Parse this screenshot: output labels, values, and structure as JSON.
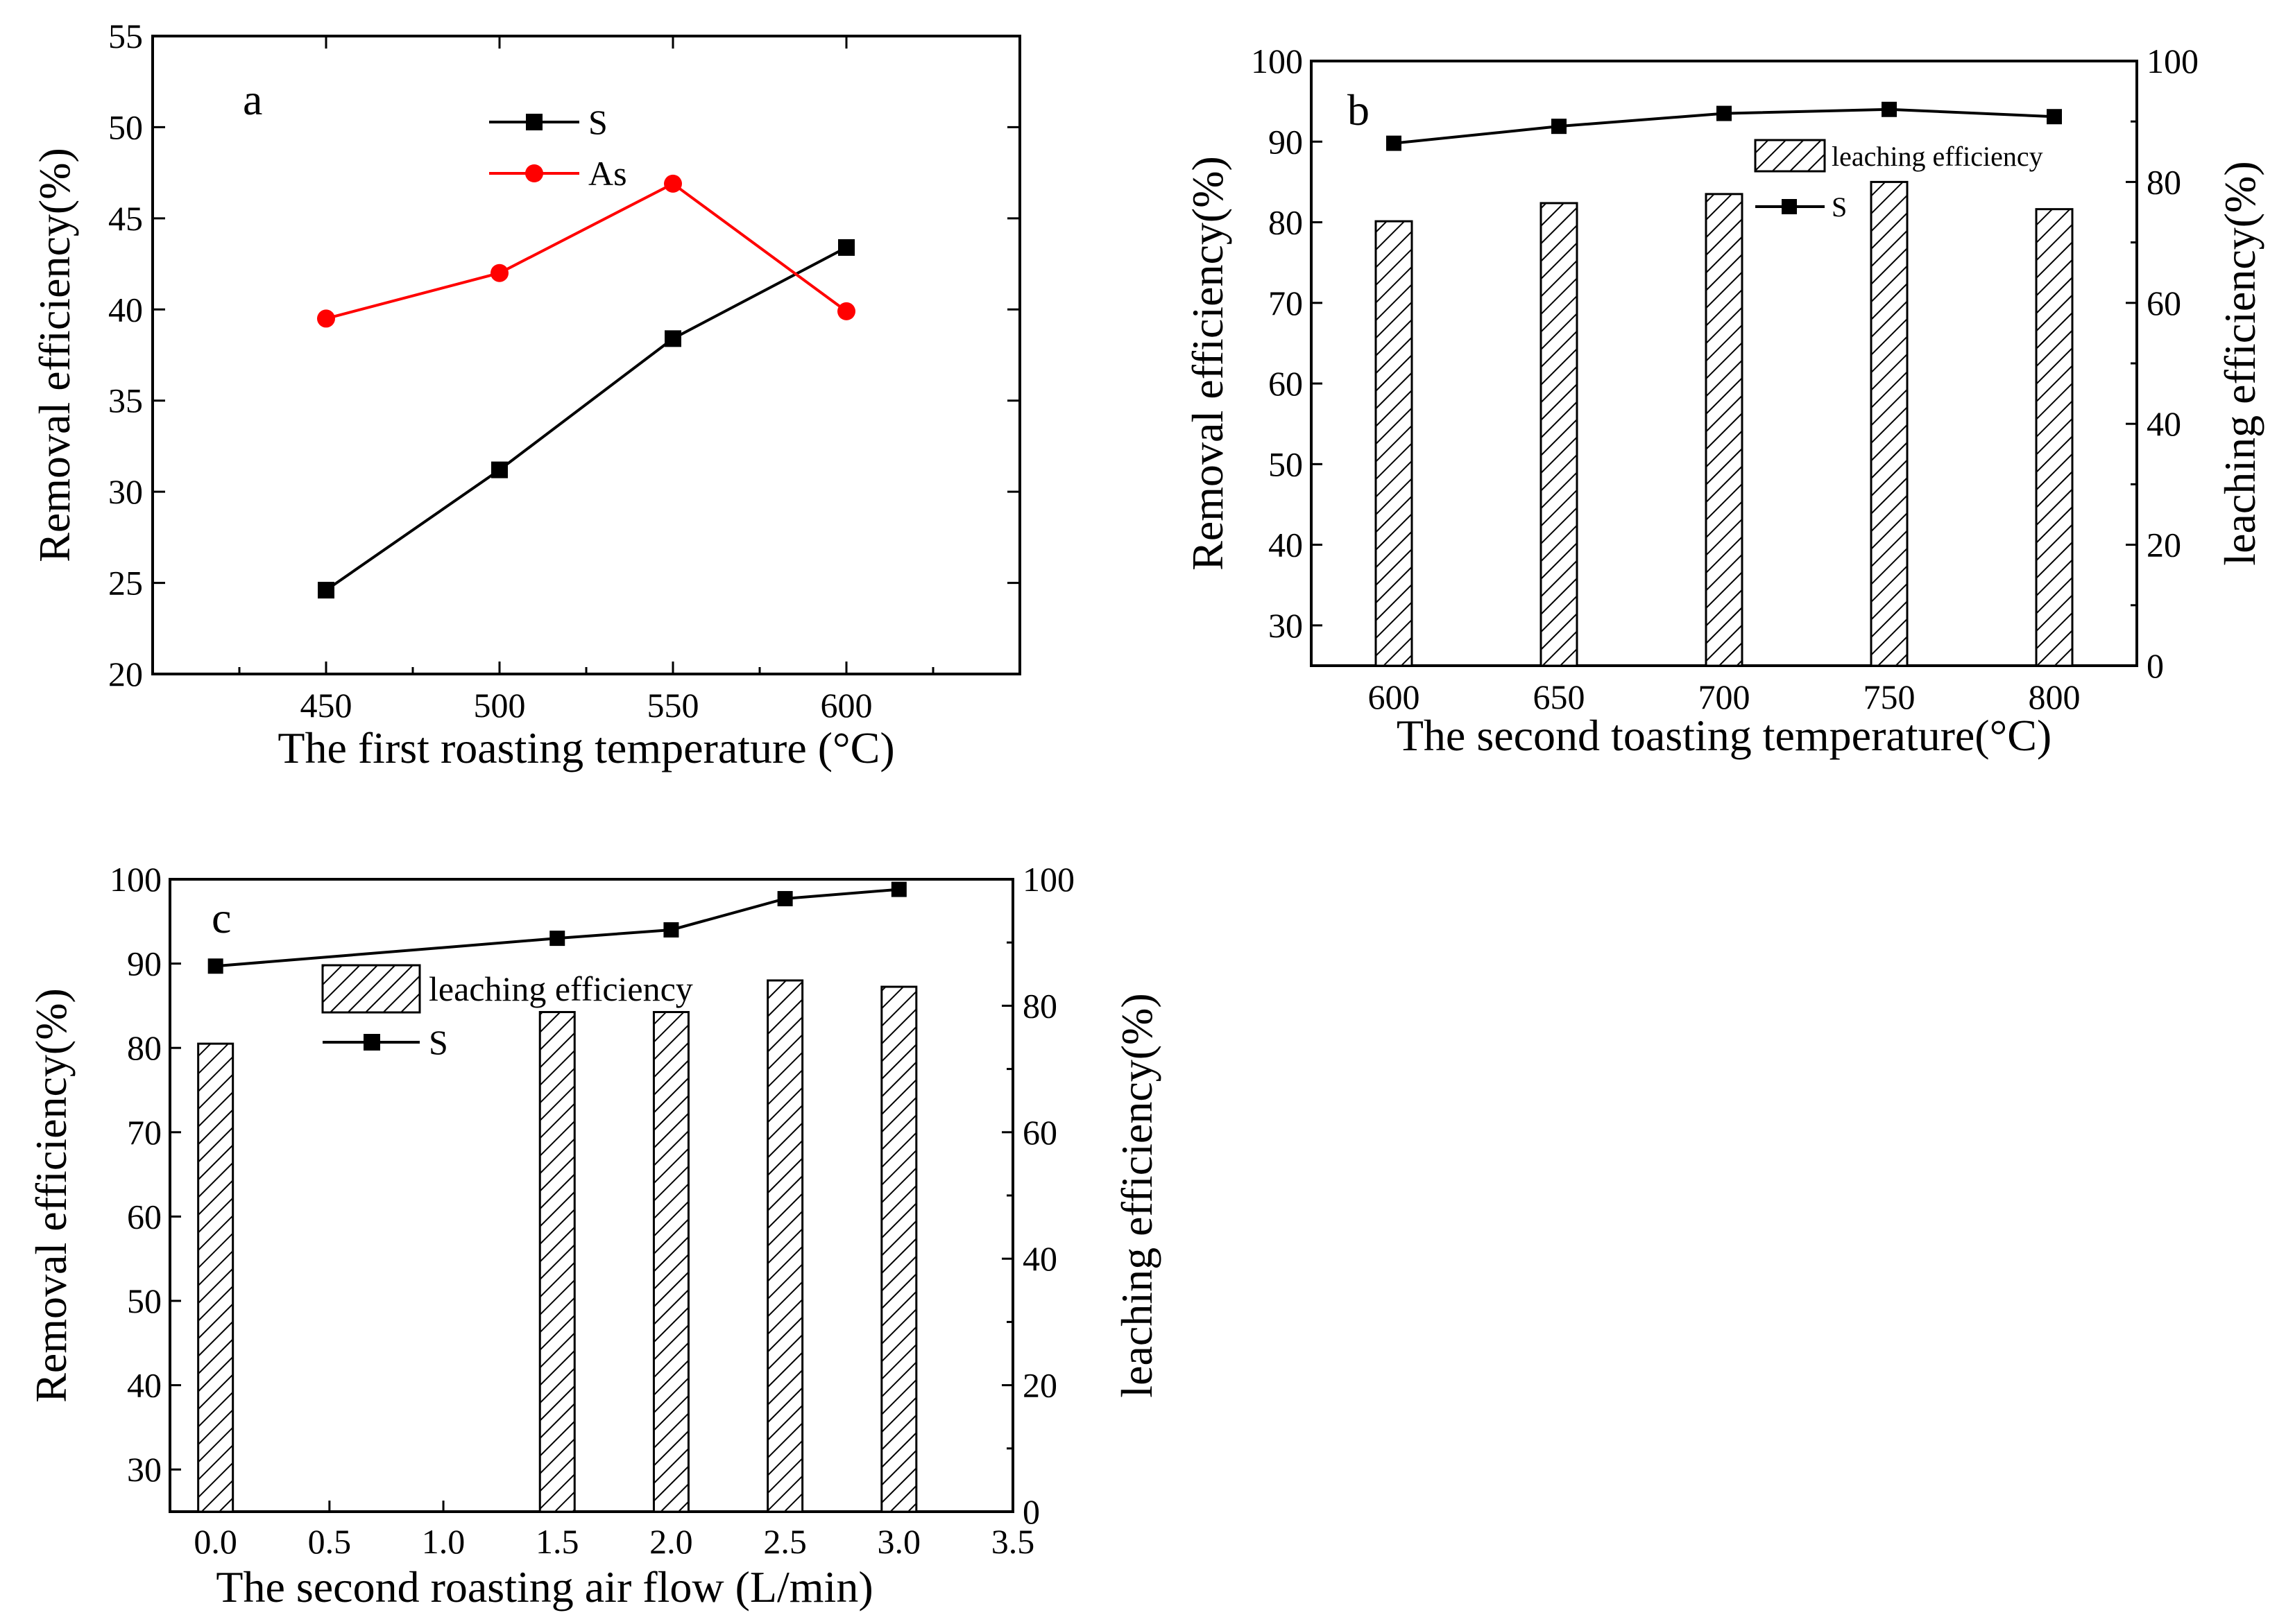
{
  "chart_data": [
    {
      "type": "line",
      "panel": "a",
      "xlabel": "The first roasting temperature (°C)",
      "ylabel": "Removal efficiency(%)",
      "xlim": [
        400,
        650
      ],
      "ylim": [
        20,
        55
      ],
      "xticks": [
        450,
        500,
        550,
        600
      ],
      "yticks": [
        20,
        25,
        30,
        35,
        40,
        45,
        50,
        55
      ],
      "x": [
        450,
        500,
        550,
        600
      ],
      "series": [
        {
          "name": "S",
          "values": [
            24.6,
            31.2,
            38.4,
            43.4
          ],
          "color": "#000000",
          "marker": "square"
        },
        {
          "name": "As",
          "values": [
            39.5,
            42.0,
            46.9,
            39.9
          ],
          "color": "#ff0000",
          "marker": "circle"
        }
      ],
      "legend_position": "top-center"
    },
    {
      "type": "bar+line",
      "panel": "b",
      "xlabel": "The second toasting temperature(°C)",
      "ylabel": "Removal efficiency(%)",
      "y2label": "leaching efficiency(%)",
      "categories": [
        600,
        650,
        700,
        750,
        800
      ],
      "xticks": [
        600,
        650,
        700,
        750,
        800
      ],
      "ylim": [
        25,
        100
      ],
      "yticks": [
        30,
        40,
        50,
        60,
        70,
        80,
        90,
        100
      ],
      "y2lim": [
        0,
        100
      ],
      "y2ticks": [
        0,
        20,
        40,
        60,
        80,
        100
      ],
      "bar_series": {
        "name": "leaching efficiency",
        "values": [
          73.5,
          76.5,
          78,
          80,
          75.5
        ],
        "axis": "right",
        "hatch": "diagonal"
      },
      "line_series": {
        "name": "S",
        "values": [
          89.8,
          91.9,
          93.5,
          94.0,
          93.1
        ],
        "axis": "left",
        "marker": "square",
        "color": "#000000"
      },
      "legend_position": "top-right"
    },
    {
      "type": "bar+line",
      "panel": "c",
      "xlabel": "The second roasting air flow (L/min)",
      "ylabel": "Removal efficiency(%)",
      "y2label": "leaching efficiency(%)",
      "x": [
        0.0,
        1.5,
        2.0,
        2.5,
        3.0
      ],
      "xlim": [
        -0.2,
        3.5
      ],
      "xticks": [
        "0.0",
        "0.5",
        "1.0",
        "1.5",
        "2.0",
        "2.5",
        "3.0",
        "3.5"
      ],
      "ylim": [
        25,
        100
      ],
      "yticks": [
        30,
        40,
        50,
        60,
        70,
        80,
        90,
        100
      ],
      "y2lim": [
        0,
        100
      ],
      "y2ticks": [
        0,
        20,
        40,
        60,
        80,
        100
      ],
      "bar_series": {
        "name": "leaching efficiency",
        "values": [
          74,
          79,
          79,
          84,
          83
        ],
        "axis": "right",
        "hatch": "diagonal"
      },
      "line_series": {
        "name": "S",
        "values": [
          89.7,
          93.0,
          94.0,
          97.7,
          98.8
        ],
        "axis": "left",
        "marker": "square",
        "color": "#000000"
      },
      "legend_position": "top-left"
    }
  ]
}
